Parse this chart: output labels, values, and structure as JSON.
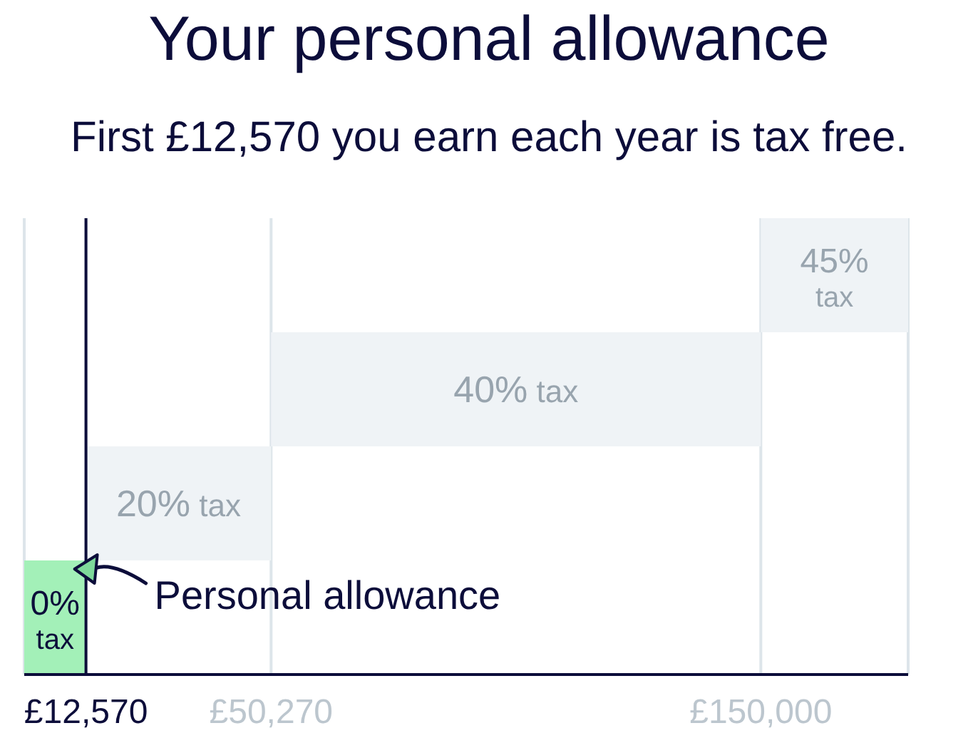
{
  "chart_data": {
    "type": "bar",
    "orientation": "horizontal",
    "title": "Your personal allowance",
    "subtitle": "First £12,570 you earn each year is tax free.",
    "categories": [
      "45% tax",
      "40% tax",
      "20% tax",
      "0% tax"
    ],
    "values": [
      30000,
      99730,
      37700,
      12570
    ],
    "base": [
      150000,
      50270,
      12570,
      0
    ],
    "colors": [
      "#eff3f6",
      "#eff3f6",
      "#eff3f6",
      "#a3f0b8"
    ],
    "xlim": [
      0,
      180000
    ],
    "xticks": [
      {
        "value": 12570,
        "label": "£12,570"
      },
      {
        "value": 50270,
        "label": "£50,270"
      },
      {
        "value": 150000,
        "label": "£150,000"
      }
    ],
    "grid": "x",
    "ref_lines": [
      {
        "axis": "x",
        "value": 12570,
        "color": "#0c0d3a"
      }
    ],
    "annotations": [
      {
        "text": "Personal allowance",
        "x": 12570
      }
    ]
  }
}
